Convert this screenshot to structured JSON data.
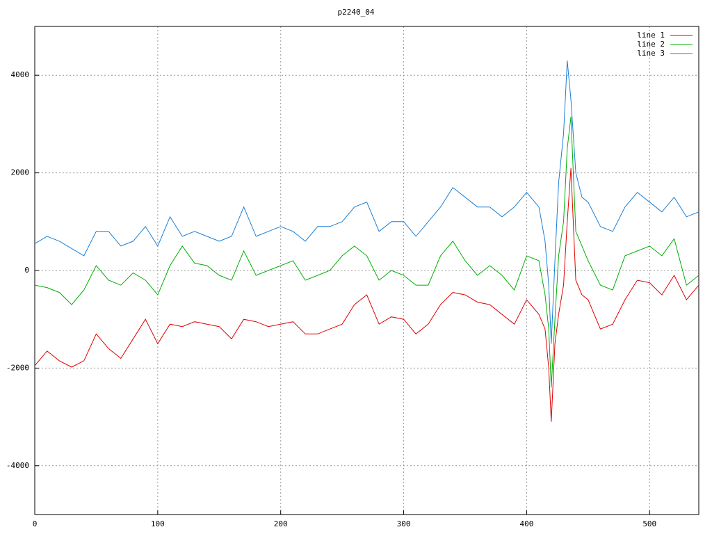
{
  "chart_data": {
    "type": "line",
    "title": "p2240_04",
    "x": [
      0,
      10,
      20,
      30,
      40,
      50,
      60,
      70,
      80,
      90,
      100,
      110,
      120,
      130,
      140,
      150,
      160,
      170,
      180,
      190,
      200,
      210,
      220,
      230,
      240,
      250,
      260,
      270,
      280,
      290,
      300,
      310,
      320,
      330,
      340,
      350,
      360,
      370,
      380,
      390,
      400,
      410,
      415,
      418,
      420,
      423,
      426,
      430,
      433,
      436,
      440,
      445,
      450,
      460,
      470,
      480,
      490,
      500,
      510,
      520,
      530,
      540
    ],
    "series": [
      {
        "name": "line 1",
        "color": "#e00000",
        "values": [
          -1950,
          -1650,
          -1850,
          -1980,
          -1850,
          -1300,
          -1600,
          -1800,
          -1400,
          -1000,
          -1500,
          -1100,
          -1150,
          -1050,
          -1100,
          -1150,
          -1400,
          -1000,
          -1050,
          -1150,
          -1100,
          -1050,
          -1300,
          -1300,
          -1200,
          -1100,
          -700,
          -500,
          -1100,
          -950,
          -1000,
          -1300,
          -1100,
          -700,
          -450,
          -500,
          -650,
          -700,
          -900,
          -1100,
          -600,
          -900,
          -1200,
          -2000,
          -3100,
          -1500,
          -900,
          -300,
          1000,
          2100,
          -200,
          -500,
          -600,
          -1200,
          -1100,
          -600,
          -200,
          -250,
          -500,
          -100,
          -600,
          -300
        ]
      },
      {
        "name": "line 2",
        "color": "#00b000",
        "values": [
          -300,
          -350,
          -450,
          -700,
          -400,
          100,
          -200,
          -300,
          -50,
          -200,
          -500,
          100,
          500,
          150,
          100,
          -100,
          -200,
          400,
          -100,
          0,
          100,
          200,
          -200,
          -100,
          0,
          300,
          500,
          300,
          -200,
          0,
          -100,
          -300,
          -300,
          300,
          600,
          200,
          -100,
          100,
          -100,
          -400,
          300,
          200,
          -500,
          -1200,
          -2400,
          -1000,
          300,
          1000,
          2500,
          3150,
          800,
          500,
          200,
          -300,
          -400,
          300,
          400,
          500,
          300,
          650,
          -300,
          -100
        ]
      },
      {
        "name": "line 3",
        "color": "#1a7fd6",
        "values": [
          550,
          700,
          600,
          450,
          300,
          800,
          800,
          500,
          600,
          900,
          500,
          1100,
          700,
          800,
          700,
          600,
          700,
          1300,
          700,
          800,
          900,
          800,
          600,
          900,
          900,
          1000,
          1300,
          1400,
          800,
          1000,
          1000,
          700,
          1000,
          1300,
          1700,
          1500,
          1300,
          1300,
          1100,
          1300,
          1600,
          1300,
          600,
          -300,
          -1500,
          200,
          1800,
          2800,
          4300,
          3500,
          2000,
          1500,
          1400,
          900,
          800,
          1300,
          1600,
          1400,
          1200,
          1500,
          1100,
          1200
        ]
      }
    ],
    "xlim": [
      0,
      540
    ],
    "xticks": [
      0,
      100,
      200,
      300,
      400,
      500
    ],
    "ylim": [
      -5000,
      5000
    ],
    "yticks": [
      -4000,
      -2000,
      0,
      2000,
      4000
    ],
    "grid": true,
    "legend": "top-right"
  }
}
